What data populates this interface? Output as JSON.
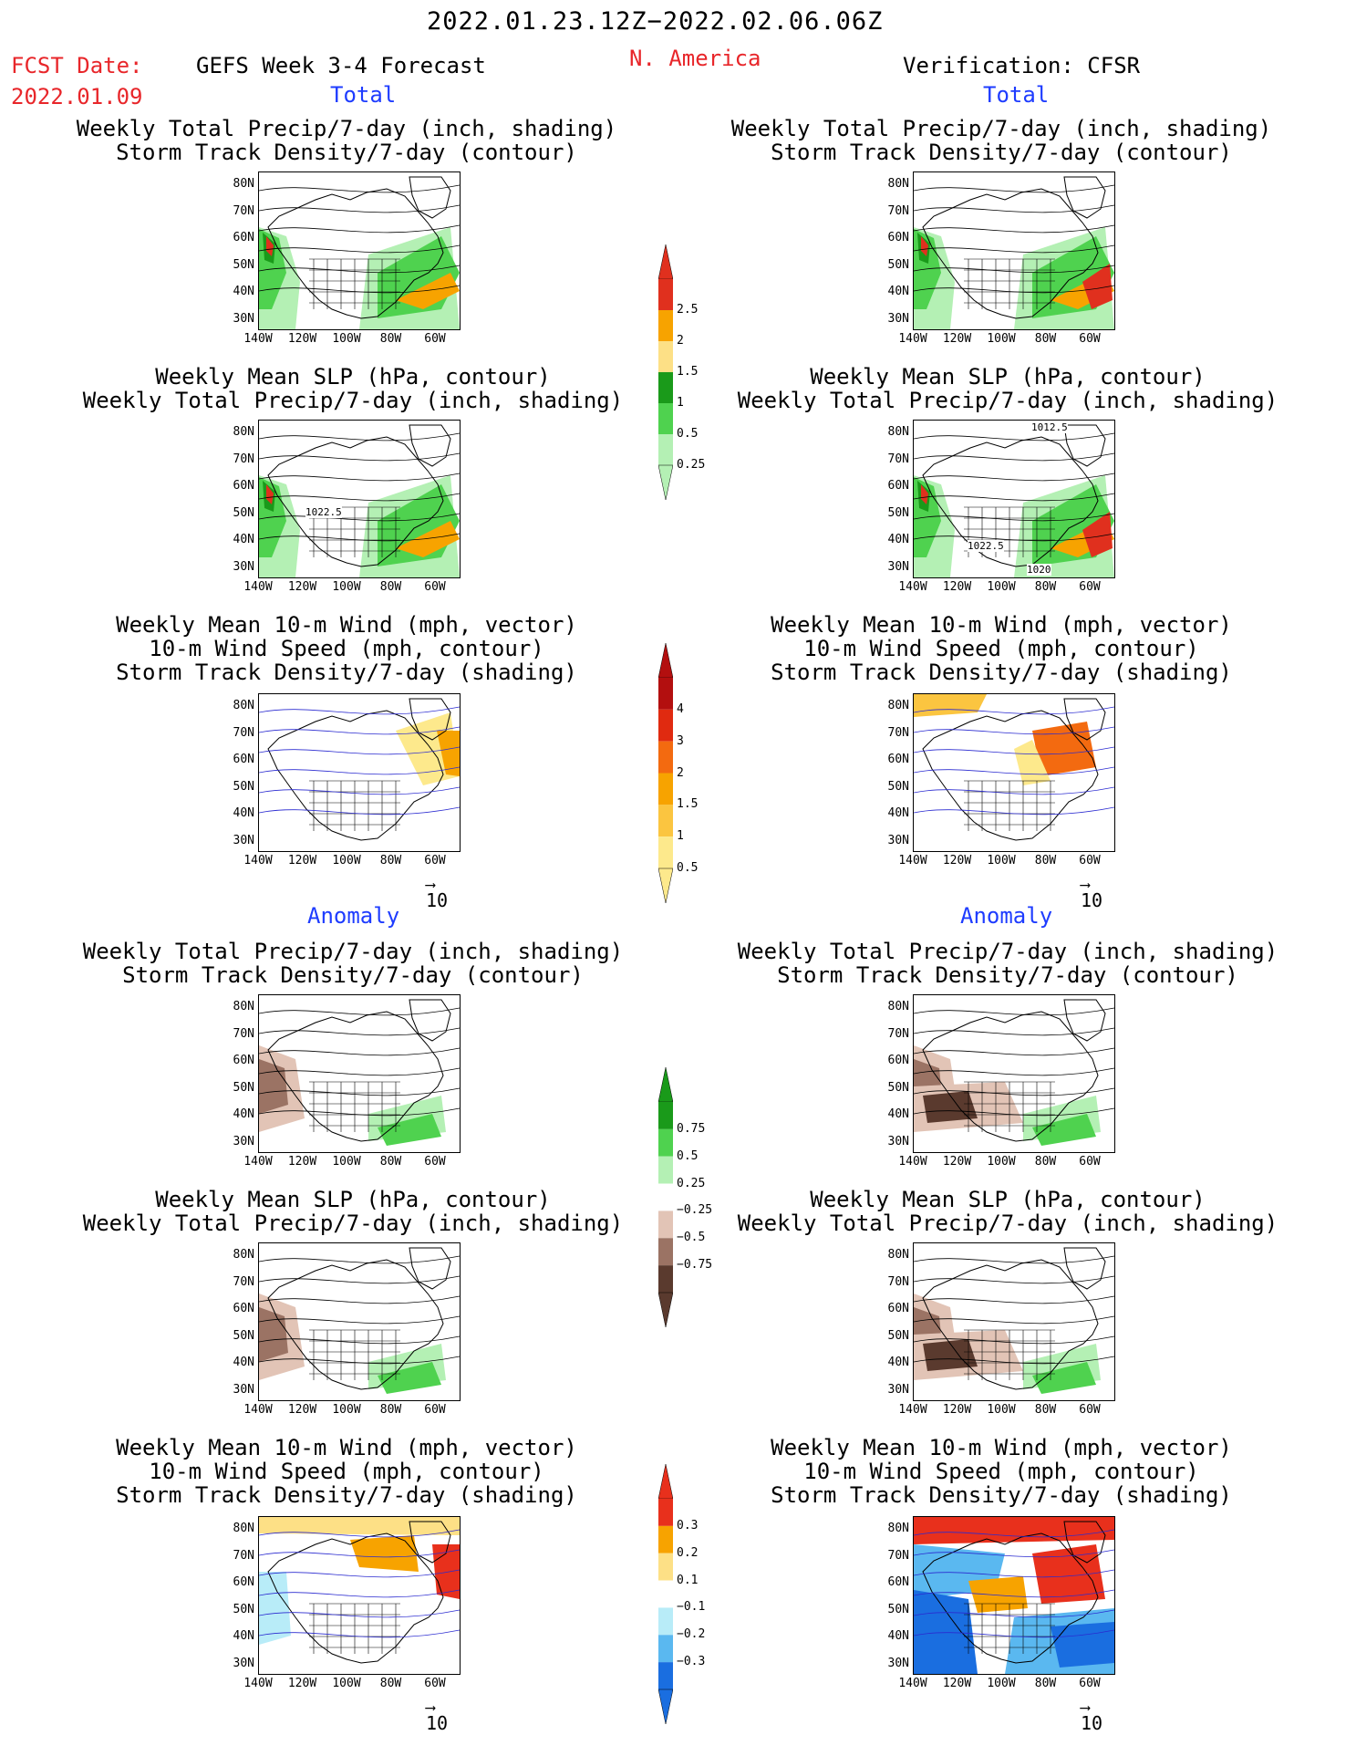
{
  "header": {
    "date_range": "2022.01.23.12Z−2022.02.06.06Z",
    "fcst_label": "FCST Date:",
    "fcst_date": "2022.01.09",
    "product": "GEFS Week 3-4 Forecast",
    "region": "N. America",
    "verification": "Verification: CFSR"
  },
  "sections": {
    "total": "Total",
    "anomaly": "Anomaly"
  },
  "panel_titles": {
    "precip_storm": [
      "Weekly Total Precip/7-day (inch, shading)",
      "Storm Track Density/7-day (contour)"
    ],
    "slp_precip": [
      "Weekly Mean SLP (hPa, contour)",
      "Weekly Total Precip/7-day (inch, shading)"
    ],
    "wind_storm": [
      "Weekly Mean 10-m Wind (mph, vector)",
      "10-m Wind Speed (mph, contour)",
      "Storm Track Density/7-day (shading)"
    ]
  },
  "axes": {
    "lat_ticks": [
      "80N",
      "70N",
      "60N",
      "50N",
      "40N",
      "30N"
    ],
    "lon_ticks": [
      "140W",
      "120W",
      "100W",
      "80W",
      "60W"
    ]
  },
  "vector_ref": "10",
  "slp_labels": {
    "fcst": [
      "1022.5"
    ],
    "obs": [
      "1012.5",
      "1022.5",
      "1020"
    ]
  },
  "colorbars": {
    "precip_total": {
      "labels": [
        "2.5",
        "2",
        "1.5",
        "1",
        "0.5",
        "0.25"
      ],
      "colors": [
        "#e0301e",
        "#f7a300",
        "#fde086",
        "#1a9a1a",
        "#4fd24f",
        "#b4f0b4"
      ]
    },
    "storm_total": {
      "labels": [
        "4",
        "3",
        "2",
        "1.5",
        "1",
        "0.5"
      ],
      "colors": [
        "#b30f0f",
        "#e02a10",
        "#f36a10",
        "#f7a300",
        "#fbc540",
        "#fde98c"
      ]
    },
    "precip_anom": {
      "labels": [
        "0.75",
        "0.5",
        "0.25",
        "−0.25",
        "−0.5",
        "−0.75"
      ],
      "colors": [
        "#1a9a1a",
        "#4fd24f",
        "#b4f0b4",
        "#ffffff",
        "#e2c4b6",
        "#9b7364",
        "#5a3a2e"
      ]
    },
    "storm_anom": {
      "labels": [
        "0.3",
        "0.2",
        "0.1",
        "−0.1",
        "−0.2",
        "−0.3"
      ],
      "colors": [
        "#e8301c",
        "#f7a300",
        "#fde086",
        "#ffffff",
        "#b8ecf8",
        "#5ab8f0",
        "#1a6ee0"
      ]
    }
  }
}
